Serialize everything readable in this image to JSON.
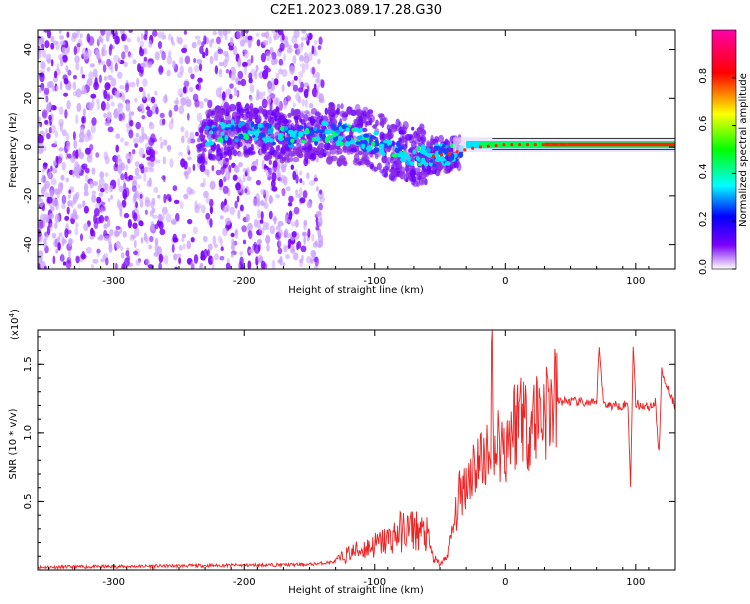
{
  "title": "C2E1.2023.089.17.28.G30",
  "chart_data": [
    {
      "type": "heatmap",
      "xlabel": "Height of straight line (km)",
      "ylabel": "Frequency (Hz)",
      "xlim": [
        -358,
        130
      ],
      "ylim": [
        -50,
        48
      ],
      "xticks": [
        -300,
        -200,
        -100,
        0,
        100
      ],
      "yticks": [
        -40,
        -20,
        0,
        20,
        40
      ],
      "tick_labels_x": [
        "-300",
        "-200",
        "-100",
        "0",
        "100"
      ],
      "tick_labels_y": [
        "-40",
        "-20",
        "0",
        "20",
        "40"
      ],
      "colorbar": {
        "label": "Normalized spectral amplitude",
        "range": [
          0,
          1
        ],
        "ticks": [
          0.0,
          0.2,
          0.4,
          0.6,
          0.8
        ],
        "tick_labels": [
          "0.0",
          "0.2",
          "0.4",
          "0.6",
          "0.8"
        ],
        "colormap": [
          "#ffffff",
          "#7a00ff",
          "#0000ff",
          "#00ffff",
          "#00ff00",
          "#ffff00",
          "#ff0000",
          "#ff00aa"
        ]
      },
      "signal_trace": [
        {
          "x": -230,
          "y": 5
        },
        {
          "x": -200,
          "y": 7
        },
        {
          "x": -170,
          "y": 4
        },
        {
          "x": -140,
          "y": 6
        },
        {
          "x": -120,
          "y": 5
        },
        {
          "x": -100,
          "y": 2
        },
        {
          "x": -80,
          "y": -2
        },
        {
          "x": -60,
          "y": -4
        },
        {
          "x": -45,
          "y": -3
        },
        {
          "x": -30,
          "y": -1
        },
        {
          "x": -20,
          "y": 0
        },
        {
          "x": 0,
          "y": 1
        },
        {
          "x": 60,
          "y": 1
        },
        {
          "x": 90,
          "y": 2
        },
        {
          "x": 130,
          "y": 1
        }
      ],
      "noise_region": [
        -358,
        -140
      ],
      "colors": {
        "noise": "#7a00ff",
        "noise_light": "#c9a0ff",
        "line": "#ff0000"
      }
    },
    {
      "type": "line",
      "xlabel": "Height of straight line (km)",
      "ylabel": "SNR (10 * v/v)",
      "multiplier": "(x10",
      "multiplier_exp": "4",
      "multiplier_close": ")",
      "xlim": [
        -358,
        130
      ],
      "ylim": [
        0,
        17500
      ],
      "xticks": [
        -300,
        -200,
        -100,
        0,
        100
      ],
      "yticks": [
        5000,
        10000,
        15000
      ],
      "tick_labels_x": [
        "-300",
        "-200",
        "-100",
        "0",
        "100"
      ],
      "tick_labels_y": [
        "0.5",
        "1.0",
        "1.5"
      ],
      "color": "#ee2222",
      "series": [
        {
          "x": [
            -358,
            -300,
            -250,
            -200,
            -150,
            -130,
            -120,
            -110,
            -100,
            -90,
            -80,
            -70,
            -60,
            -55,
            -50,
            -45,
            -40,
            -35,
            -30,
            -25,
            -20,
            -15,
            -12,
            -10,
            -8,
            -5,
            0,
            5,
            10,
            12,
            15,
            20,
            30,
            40,
            50,
            60,
            70,
            72,
            75,
            80,
            90,
            94,
            96,
            98,
            100,
            110,
            115,
            118,
            120,
            130
          ],
          "y": [
            200,
            250,
            300,
            350,
            400,
            600,
            1200,
            1500,
            1800,
            2200,
            2800,
            3000,
            2500,
            800,
            400,
            900,
            3000,
            5500,
            6500,
            7500,
            7800,
            8500,
            7000,
            15500,
            8500,
            9500,
            9000,
            10500,
            11000,
            13000,
            10500,
            11000,
            11800,
            12300,
            12300,
            12200,
            12100,
            16500,
            12200,
            12000,
            12000,
            12100,
            6000,
            16500,
            12100,
            11900,
            12200,
            8500,
            14500,
            11900
          ]
        }
      ]
    }
  ]
}
